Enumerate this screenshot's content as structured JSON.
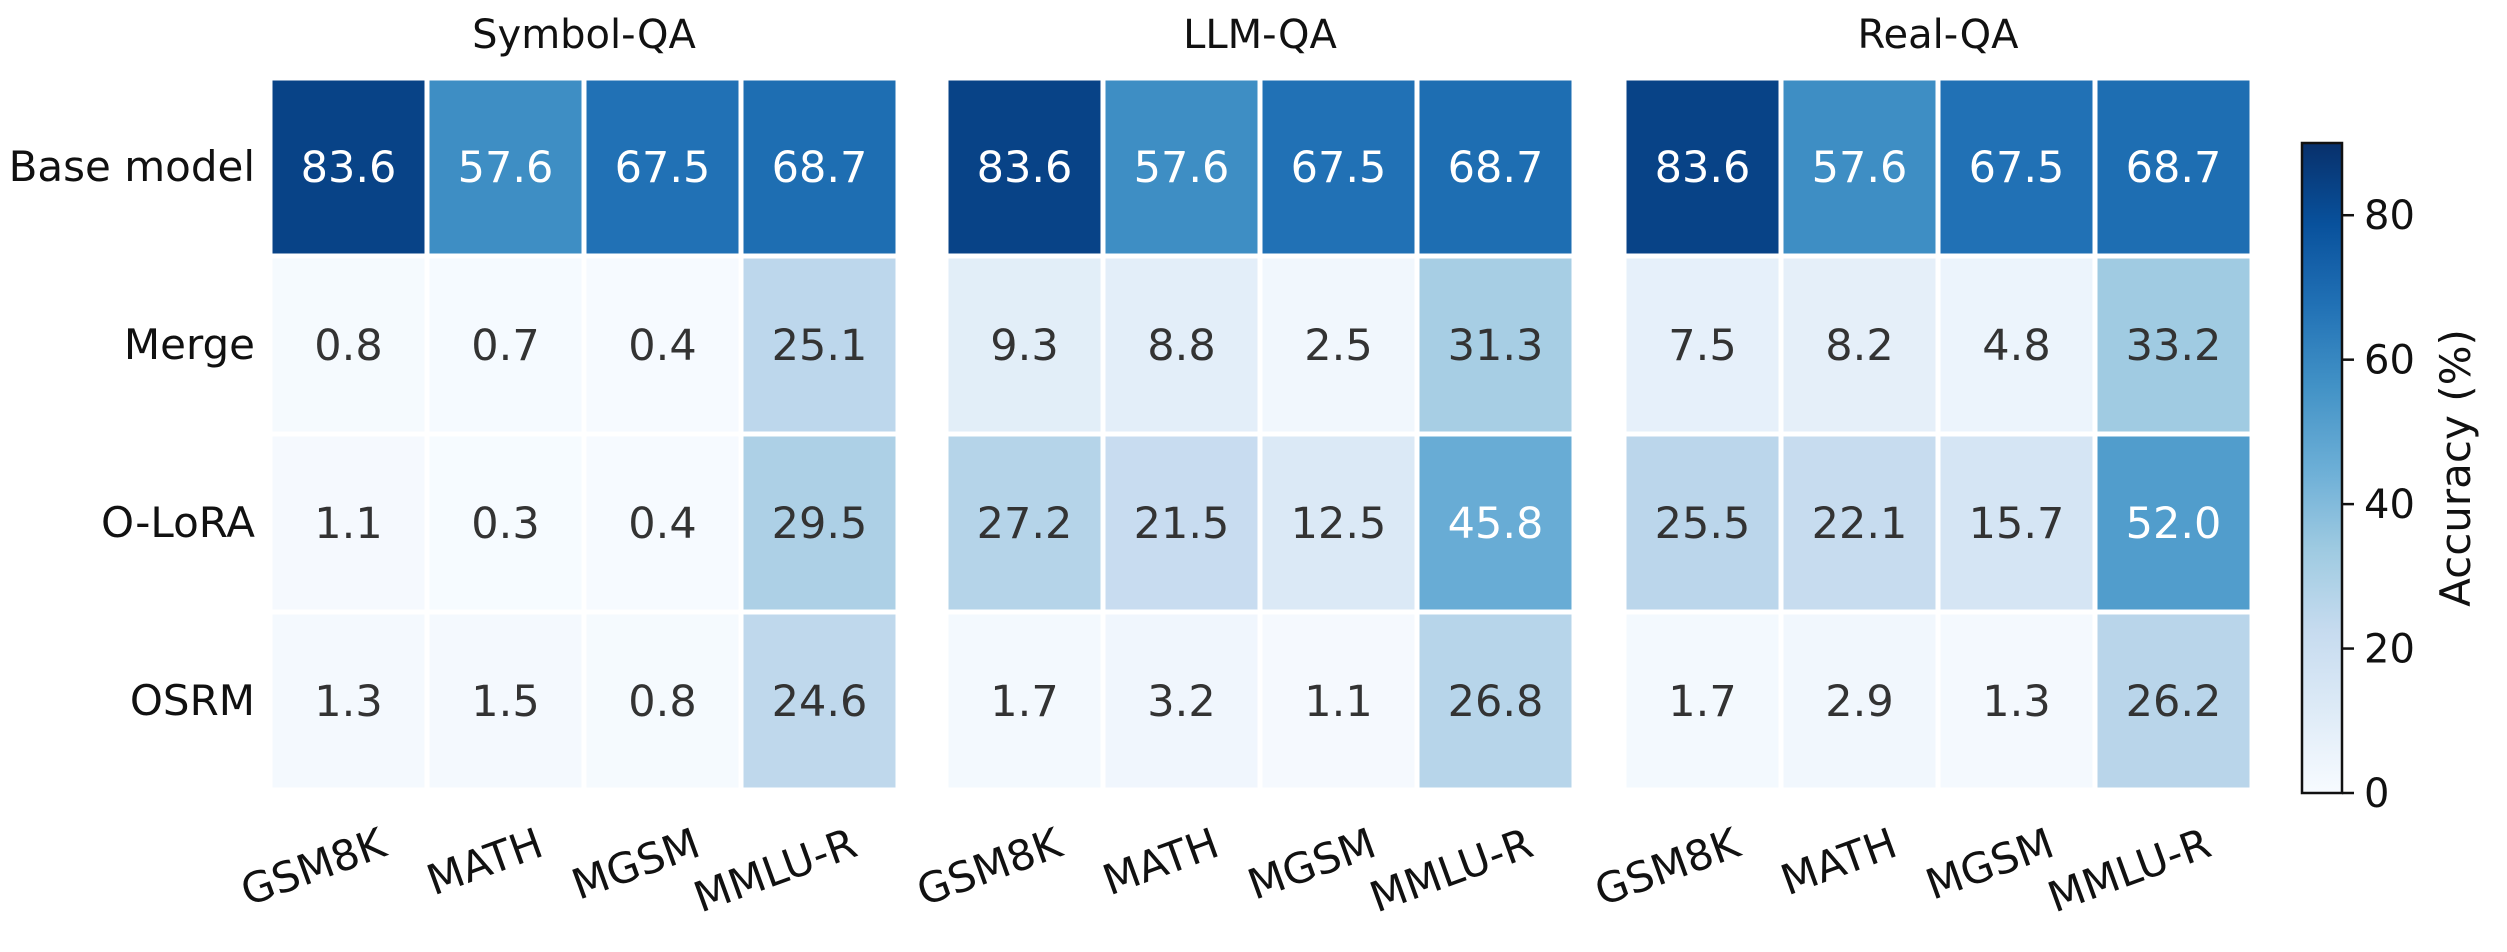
{
  "chart_data": {
    "type": "heatmap",
    "panels": [
      {
        "title": "Symbol-QA",
        "rows": [
          "Base model",
          "Merge",
          "O-LoRA",
          "OSRM"
        ],
        "columns": [
          "GSM8K",
          "MATH",
          "MGSM",
          "MMLU-R"
        ],
        "values": [
          [
            83.6,
            57.6,
            67.5,
            68.7
          ],
          [
            0.8,
            0.7,
            0.4,
            25.1
          ],
          [
            1.1,
            0.3,
            0.4,
            29.5
          ],
          [
            1.3,
            1.5,
            0.8,
            24.6
          ]
        ]
      },
      {
        "title": "LLM-QA",
        "rows": [
          "Base model",
          "Merge",
          "O-LoRA",
          "OSRM"
        ],
        "columns": [
          "GSM8K",
          "MATH",
          "MGSM",
          "MMLU-R"
        ],
        "values": [
          [
            83.6,
            57.6,
            67.5,
            68.7
          ],
          [
            9.3,
            8.8,
            2.5,
            31.3
          ],
          [
            27.2,
            21.5,
            12.5,
            45.8
          ],
          [
            1.7,
            3.2,
            1.1,
            26.8
          ]
        ]
      },
      {
        "title": "Real-QA",
        "rows": [
          "Base model",
          "Merge",
          "O-LoRA",
          "OSRM"
        ],
        "columns": [
          "GSM8K",
          "MATH",
          "MGSM",
          "MMLU-R"
        ],
        "values": [
          [
            83.6,
            57.6,
            67.5,
            68.7
          ],
          [
            7.5,
            8.2,
            4.8,
            33.2
          ],
          [
            25.5,
            22.1,
            15.7,
            52.0
          ],
          [
            1.7,
            2.9,
            1.3,
            26.2
          ]
        ]
      }
    ],
    "colorbar": {
      "label": "Accuracy (%)",
      "range": [
        0,
        90
      ],
      "ticks": [
        0,
        20,
        40,
        60,
        80
      ],
      "colormap": "Blues"
    }
  }
}
